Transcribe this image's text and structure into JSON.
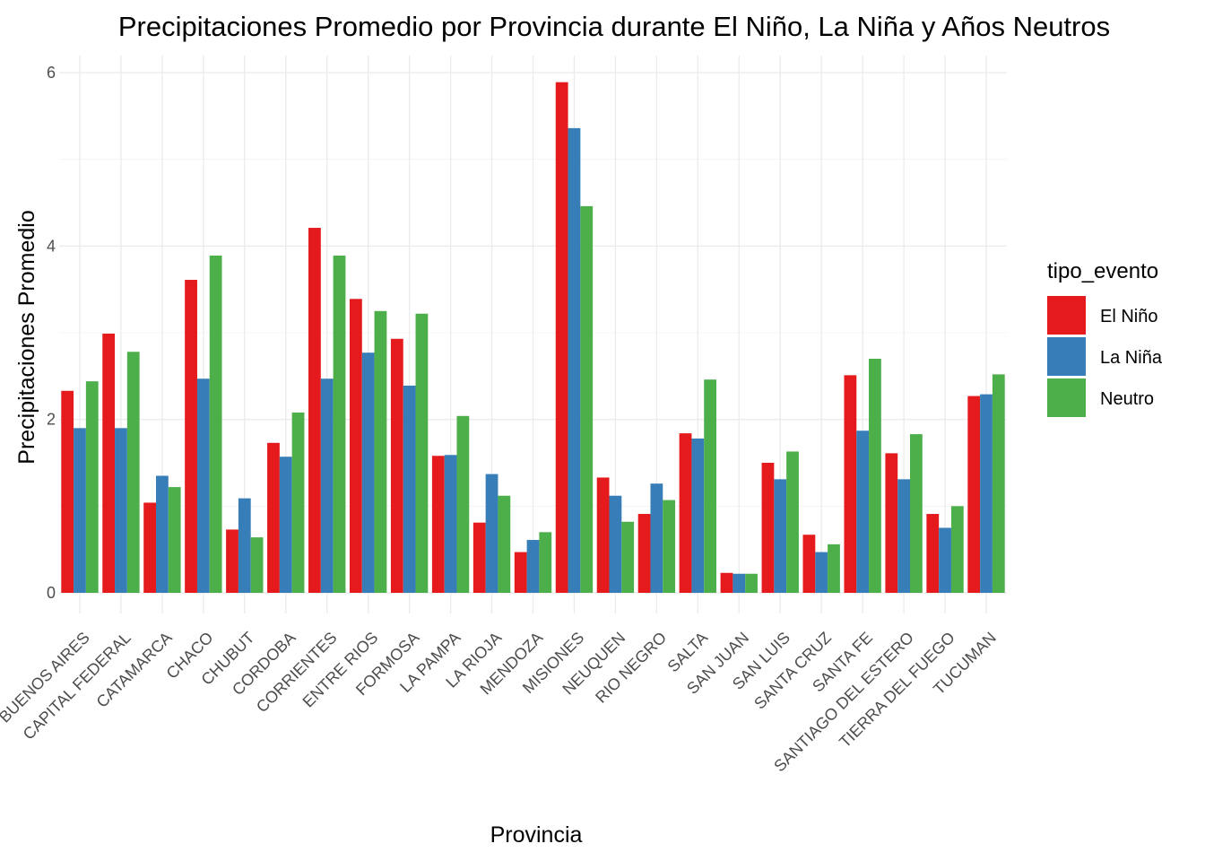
{
  "chart_data": {
    "type": "bar",
    "title": "Precipitaciones Promedio por Provincia durante El Niño, La Niña y Años Neutros",
    "xlabel": "Provincia",
    "ylabel": "Precipitaciones Promedio",
    "ylim": [
      0,
      6
    ],
    "yticks": [
      "0",
      "2",
      "4",
      "6"
    ],
    "grid": true,
    "legend": {
      "title": "tipo_evento",
      "position": "right"
    },
    "categories": [
      "BUENOS AIRES",
      "CAPITAL FEDERAL",
      "CATAMARCA",
      "CHACO",
      "CHUBUT",
      "CORDOBA",
      "CORRIENTES",
      "ENTRE RIOS",
      "FORMOSA",
      "LA PAMPA",
      "LA RIOJA",
      "MENDOZA",
      "MISIONES",
      "NEUQUEN",
      "RIO NEGRO",
      "SALTA",
      "SAN JUAN",
      "SAN LUIS",
      "SANTA CRUZ",
      "SANTA FE",
      "SANTIAGO DEL ESTERO",
      "TIERRA DEL FUEGO",
      "TUCUMAN"
    ],
    "series": [
      {
        "name": "El Niño",
        "color": "#E41A1C",
        "values": [
          2.33,
          2.99,
          1.04,
          3.61,
          0.73,
          1.73,
          4.21,
          3.39,
          2.93,
          1.58,
          0.81,
          0.47,
          5.89,
          1.33,
          0.91,
          1.84,
          0.23,
          1.5,
          0.67,
          2.51,
          1.61,
          0.91,
          2.27
        ]
      },
      {
        "name": "La Niña",
        "color": "#377EB8",
        "values": [
          1.9,
          1.9,
          1.35,
          2.47,
          1.09,
          1.57,
          2.47,
          2.77,
          2.39,
          1.59,
          1.37,
          0.61,
          5.36,
          1.12,
          1.26,
          1.78,
          0.22,
          1.31,
          0.47,
          1.87,
          1.31,
          0.75,
          2.29
        ]
      },
      {
        "name": "Neutro",
        "color": "#4DAF4A",
        "values": [
          2.44,
          2.78,
          1.22,
          3.89,
          0.64,
          2.08,
          3.89,
          3.25,
          3.22,
          2.04,
          1.12,
          0.7,
          4.46,
          0.82,
          1.07,
          2.46,
          0.22,
          1.63,
          0.56,
          2.7,
          1.83,
          1.0,
          2.52
        ]
      }
    ]
  }
}
